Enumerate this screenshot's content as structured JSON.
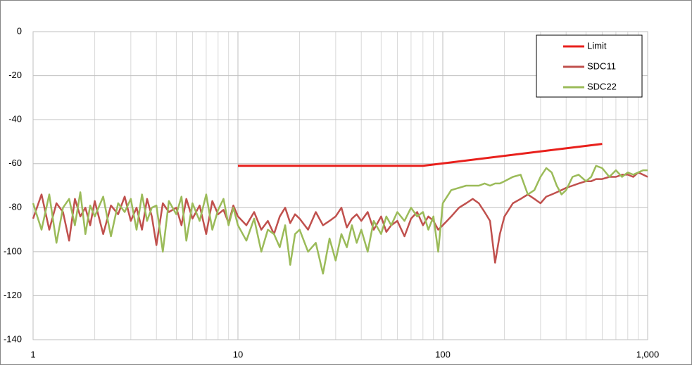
{
  "chart_data": {
    "type": "line",
    "x": [
      1,
      1.1,
      1.2,
      1.3,
      1.4,
      1.5,
      1.6,
      1.7,
      1.8,
      1.9,
      2,
      2.2,
      2.4,
      2.6,
      2.8,
      3,
      3.2,
      3.4,
      3.6,
      3.8,
      4,
      4.3,
      4.6,
      5,
      5.3,
      5.6,
      6,
      6.5,
      7,
      7.5,
      8,
      8.5,
      9,
      9.5,
      10,
      11,
      12,
      13,
      14,
      15,
      16,
      17,
      18,
      19,
      20,
      22,
      24,
      26,
      28,
      30,
      32,
      34,
      36,
      38,
      40,
      43,
      46,
      50,
      53,
      56,
      60,
      65,
      70,
      75,
      80,
      85,
      90,
      95,
      100,
      110,
      120,
      130,
      140,
      150,
      160,
      170,
      180,
      190,
      200,
      220,
      240,
      260,
      280,
      300,
      320,
      340,
      360,
      380,
      400,
      430,
      460,
      500,
      530,
      560,
      600,
      650,
      700,
      750,
      800,
      850,
      900,
      950,
      1000
    ],
    "series": [
      {
        "name": "Limit",
        "color": "#e8201c",
        "x": [
          10,
          80,
          600
        ],
        "values": [
          -61,
          -61,
          -51
        ]
      },
      {
        "name": "SDC11",
        "color": "#c0504d",
        "values": [
          -85,
          -74,
          -90,
          -78,
          -82,
          -95,
          -76,
          -84,
          -80,
          -88,
          -77,
          -92,
          -79,
          -83,
          -75,
          -86,
          -80,
          -90,
          -76,
          -84,
          -97,
          -78,
          -82,
          -80,
          -88,
          -76,
          -85,
          -79,
          -92,
          -77,
          -83,
          -81,
          -87,
          -79,
          -84,
          -88,
          -82,
          -90,
          -86,
          -92,
          -84,
          -80,
          -87,
          -83,
          -85,
          -90,
          -82,
          -88,
          -86,
          -84,
          -80,
          -89,
          -85,
          -83,
          -86,
          -82,
          -90,
          -84,
          -91,
          -88,
          -86,
          -93,
          -85,
          -82,
          -88,
          -84,
          -86,
          -90,
          -88,
          -84,
          -80,
          -78,
          -76,
          -78,
          -82,
          -86,
          -105,
          -92,
          -84,
          -78,
          -76,
          -74,
          -76,
          -78,
          -75,
          -74,
          -73,
          -72,
          -71,
          -70,
          -69,
          -68,
          -68,
          -67,
          -67,
          -66,
          -66,
          -65,
          -65,
          -66,
          -64,
          -65,
          -66
        ]
      },
      {
        "name": "SDC22",
        "color": "#9bbb59",
        "values": [
          -78,
          -90,
          -74,
          -96,
          -80,
          -76,
          -88,
          -73,
          -92,
          -79,
          -84,
          -75,
          -93,
          -78,
          -82,
          -76,
          -90,
          -74,
          -86,
          -80,
          -79,
          -100,
          -77,
          -83,
          -75,
          -95,
          -78,
          -86,
          -74,
          -90,
          -81,
          -76,
          -88,
          -80,
          -88,
          -95,
          -85,
          -100,
          -90,
          -92,
          -98,
          -88,
          -106,
          -92,
          -90,
          -100,
          -96,
          -110,
          -94,
          -104,
          -92,
          -98,
          -88,
          -96,
          -90,
          -100,
          -86,
          -92,
          -84,
          -88,
          -82,
          -86,
          -80,
          -84,
          -82,
          -90,
          -84,
          -100,
          -78,
          -72,
          -71,
          -70,
          -70,
          -70,
          -69,
          -70,
          -69,
          -69,
          -68,
          -66,
          -65,
          -74,
          -72,
          -66,
          -62,
          -64,
          -70,
          -74,
          -72,
          -66,
          -65,
          -68,
          -66,
          -61,
          -62,
          -66,
          -63,
          -66,
          -64,
          -65,
          -64,
          -63,
          -63
        ]
      }
    ],
    "xlim": [
      1,
      1000
    ],
    "xticks": [
      1,
      10,
      100,
      {
        "value": 1000,
        "label": "1,000"
      }
    ],
    "log_x": true,
    "ylim": [
      -140,
      0
    ],
    "yticks": [
      0,
      -20,
      -40,
      -60,
      -80,
      -100,
      -120,
      -140
    ],
    "grid": true,
    "minor_grid": true,
    "legend": "top-right"
  }
}
